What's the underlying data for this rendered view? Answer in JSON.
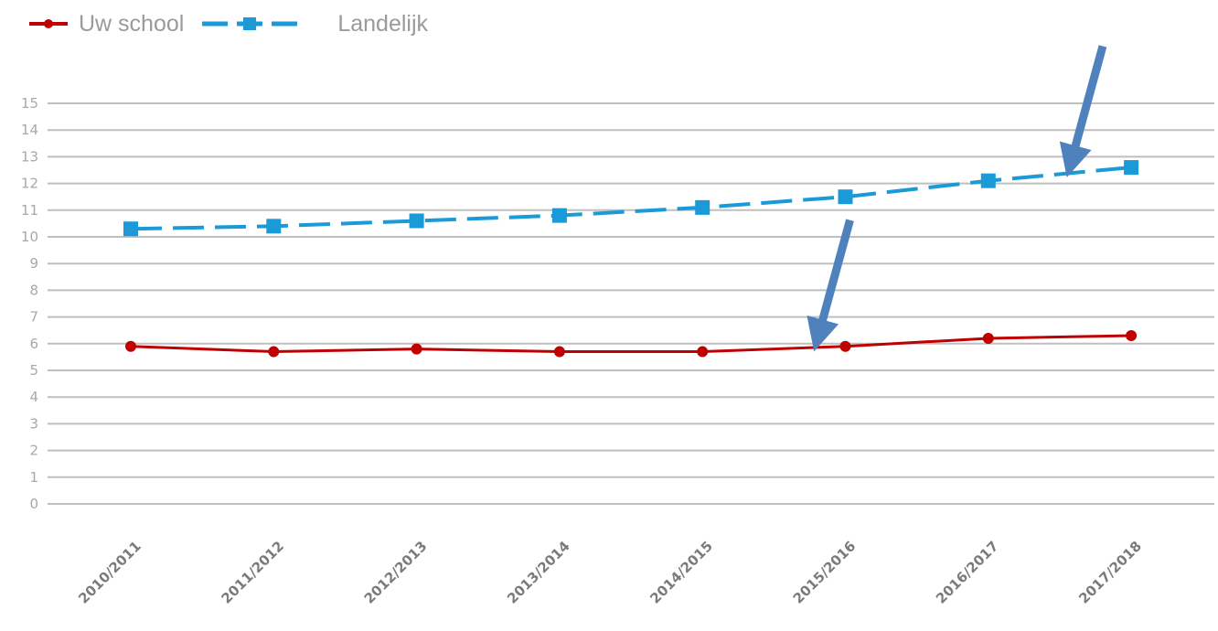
{
  "chart_data": {
    "type": "line",
    "title": "",
    "xlabel": "",
    "ylabel": "",
    "categories": [
      "2010/2011",
      "2011/2012",
      "2012/2013",
      "2013/2014",
      "2014/2015",
      "2015/2016",
      "2016/2017",
      "2017/2018"
    ],
    "ylim": [
      0,
      15
    ],
    "yticks": [
      0,
      1,
      2,
      3,
      4,
      5,
      6,
      7,
      8,
      9,
      10,
      11,
      12,
      13,
      14,
      15
    ],
    "grid": true,
    "legend_position": "top-left",
    "series": [
      {
        "name": "Uw school",
        "color": "#c00000",
        "marker": "circle",
        "dash": "solid",
        "values": [
          5.9,
          5.7,
          5.8,
          5.7,
          5.7,
          5.9,
          6.2,
          6.3
        ]
      },
      {
        "name": "Landelijk",
        "color": "#1a9bd7",
        "marker": "square",
        "dash": "dashed",
        "values": [
          10.3,
          10.4,
          10.6,
          10.8,
          11.1,
          11.5,
          12.1,
          12.6
        ]
      }
    ],
    "annotations": [
      {
        "type": "arrow",
        "color": "#4f81bd",
        "target_category": "2015/2016",
        "target_series": "Uw school"
      },
      {
        "type": "arrow",
        "color": "#4f81bd",
        "target_category": "2017/2018",
        "target_series": "Landelijk"
      }
    ]
  }
}
